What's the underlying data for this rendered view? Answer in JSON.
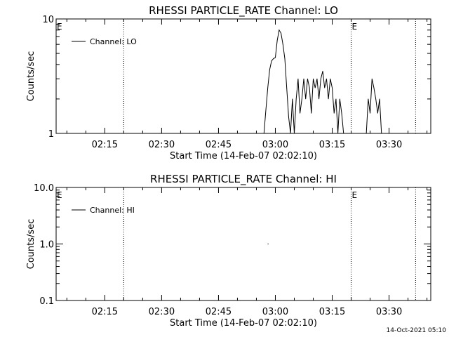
{
  "timestamp": "14-Oct-2021 05:10",
  "chart_data": [
    {
      "type": "line",
      "title": "RHESSI PARTICLE_RATE Channel: LO",
      "xlabel": "Start Time (14-Feb-07 02:02:10)",
      "ylabel": "Counts/sec",
      "yscale": "log",
      "ylim": [
        1,
        10
      ],
      "xlim": [
        "02:02:10",
        "03:41:00"
      ],
      "x_ticks": [
        "02:15",
        "02:30",
        "02:45",
        "03:00",
        "03:15",
        "03:30"
      ],
      "y_ticks": [
        "1",
        "10"
      ],
      "legend": {
        "entries": [
          "Channel: LO"
        ],
        "placement": "top-left"
      },
      "event_markers": [
        {
          "time": "02:20:00",
          "label": "E"
        },
        {
          "time": "03:20:00",
          "label": "E"
        },
        {
          "time": "03:37:00",
          "label": ""
        }
      ],
      "series": [
        {
          "name": "Channel: LO",
          "x": [
            "02:57:00",
            "02:57:30",
            "02:58:00",
            "02:58:30",
            "02:59:00",
            "02:59:30",
            "03:00:00",
            "03:00:30",
            "03:01:00",
            "03:01:30",
            "03:02:00",
            "03:02:30",
            "03:03:00",
            "03:03:30",
            "03:04:00",
            "03:04:30",
            "03:05:00",
            "03:05:30",
            "03:06:00",
            "03:06:30",
            "03:07:00",
            "03:07:30",
            "03:08:00",
            "03:08:30",
            "03:09:00",
            "03:09:30",
            "03:10:00",
            "03:10:30",
            "03:11:00",
            "03:11:30",
            "03:12:00",
            "03:12:30",
            "03:13:00",
            "03:13:30",
            "03:14:00",
            "03:14:30",
            "03:15:00",
            "03:15:30",
            "03:16:00",
            "03:16:30",
            "03:17:00",
            "03:17:30",
            "03:18:00",
            "03:24:00",
            "03:24:30",
            "03:25:00",
            "03:25:30",
            "03:26:00",
            "03:26:30",
            "03:27:00",
            "03:27:30",
            "03:28:00"
          ],
          "y": [
            1.0,
            1.6,
            2.5,
            3.6,
            4.3,
            4.5,
            4.6,
            6.5,
            8.0,
            7.5,
            6.0,
            4.5,
            2.5,
            1.4,
            1.0,
            2.0,
            1.0,
            2.0,
            3.0,
            1.5,
            2.0,
            3.0,
            2.0,
            3.0,
            2.5,
            1.5,
            3.0,
            2.5,
            3.0,
            2.0,
            3.0,
            3.5,
            2.5,
            3.0,
            2.0,
            3.0,
            2.5,
            1.5,
            2.0,
            1.0,
            2.0,
            1.5,
            1.0,
            1.0,
            2.0,
            1.5,
            3.0,
            2.5,
            2.0,
            1.5,
            2.0,
            1.0
          ]
        }
      ]
    },
    {
      "type": "line",
      "title": "RHESSI PARTICLE_RATE Channel: HI",
      "xlabel": "Start Time (14-Feb-07 02:02:10)",
      "ylabel": "Counts/sec",
      "yscale": "log",
      "ylim": [
        0.1,
        10
      ],
      "xlim": [
        "02:02:10",
        "03:41:00"
      ],
      "x_ticks": [
        "02:15",
        "02:30",
        "02:45",
        "03:00",
        "03:15",
        "03:30"
      ],
      "y_ticks": [
        "0.1",
        "1.0",
        "10.0"
      ],
      "legend": {
        "entries": [
          "Channel: HI"
        ],
        "placement": "top-left"
      },
      "event_markers": [
        {
          "time": "02:20:00",
          "label": "E"
        },
        {
          "time": "03:20:00",
          "label": "E"
        },
        {
          "time": "03:37:00",
          "label": ""
        }
      ],
      "series": [
        {
          "name": "Channel: HI",
          "x": [
            "02:58:00",
            "02:58:10"
          ],
          "y": [
            1.0,
            1.0
          ]
        }
      ]
    }
  ]
}
